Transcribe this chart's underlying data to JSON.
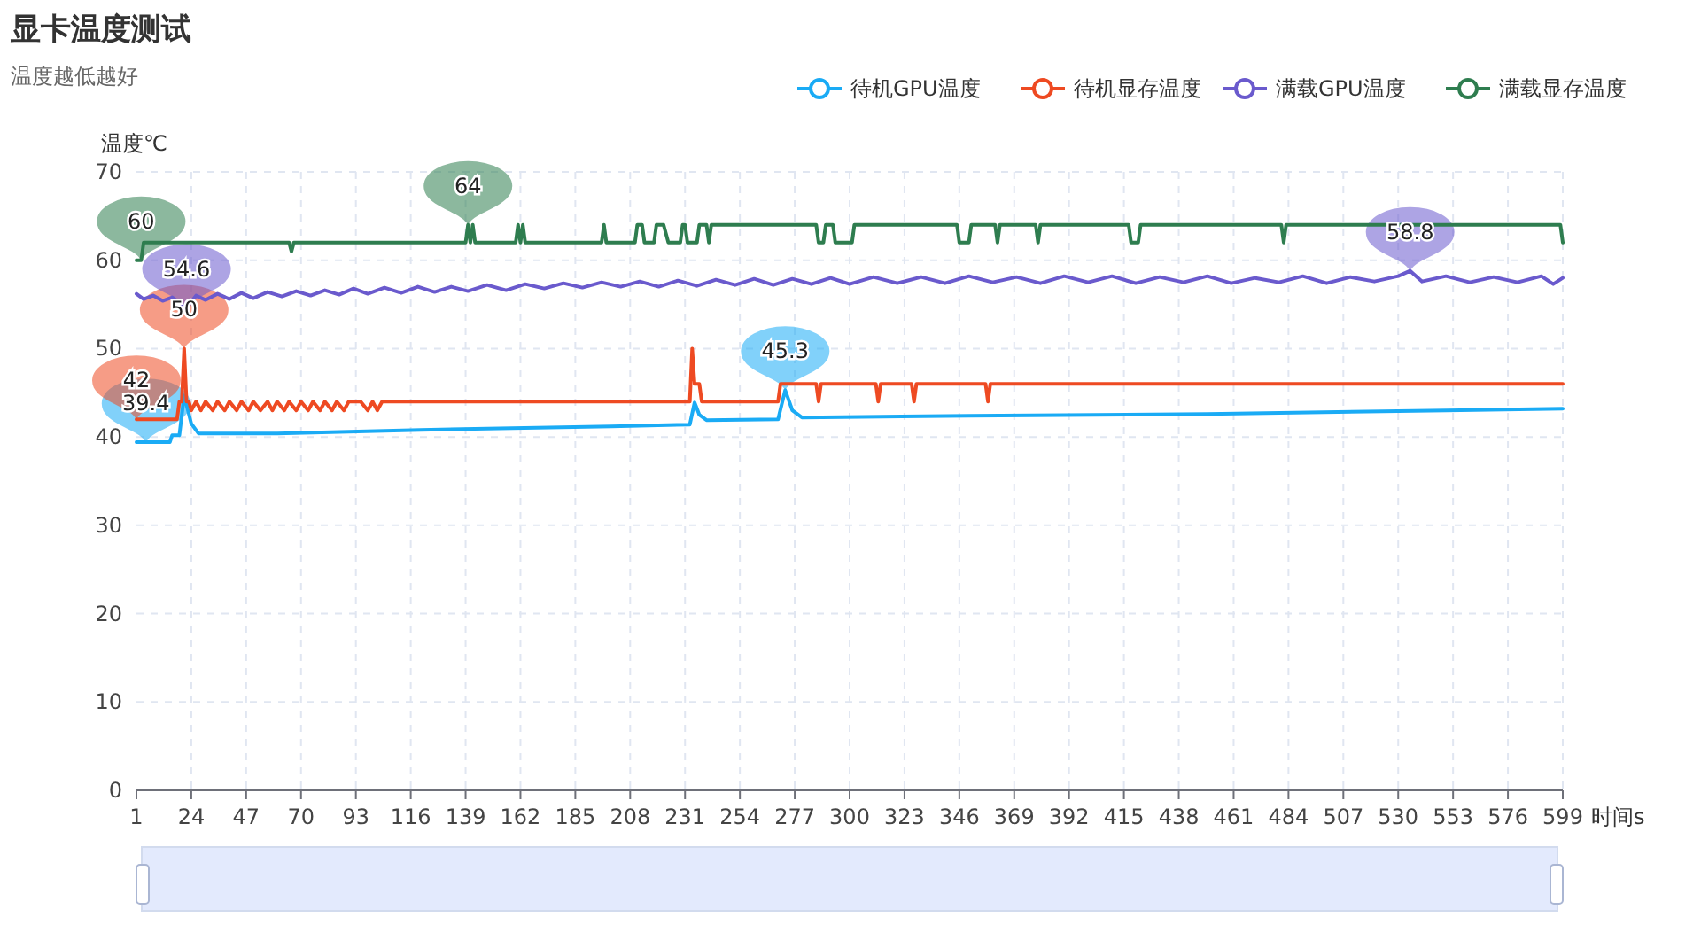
{
  "chart_data": {
    "type": "line",
    "title": "显卡温度测试",
    "subtitle": "温度越低越好",
    "xlabel": "时间s",
    "ylabel": "温度℃",
    "xlim": [
      1,
      599
    ],
    "xticks": [
      1,
      24,
      47,
      70,
      93,
      116,
      139,
      162,
      185,
      208,
      231,
      254,
      277,
      300,
      323,
      346,
      369,
      392,
      415,
      438,
      461,
      484,
      507,
      530,
      553,
      576,
      599
    ],
    "ylim": [
      0,
      70
    ],
    "yticks": [
      0,
      10,
      20,
      30,
      40,
      50,
      60,
      70
    ],
    "grid": true,
    "legend": "top right",
    "series": [
      {
        "name": "待机GPU温度",
        "color": "#1aabf5",
        "x": [
          1,
          15,
          16,
          19,
          21,
          24,
          27,
          60,
          120,
          200,
          233,
          235,
          237,
          240,
          270,
          273,
          276,
          280,
          350,
          450,
          550,
          599
        ],
        "values": [
          39.4,
          39.4,
          40.2,
          40.2,
          44.7,
          41.5,
          40.4,
          40.4,
          40.8,
          41.2,
          41.4,
          43.9,
          42.5,
          41.9,
          42.0,
          45.3,
          43.0,
          42.2,
          42.4,
          42.6,
          43.0,
          43.2
        ]
      },
      {
        "name": "待机显存温度",
        "color": "#ee4a22",
        "x": [
          1,
          18,
          19,
          20,
          21,
          22,
          23,
          24,
          26,
          28,
          30,
          33,
          35,
          38,
          40,
          43,
          45,
          48,
          50,
          53,
          56,
          58,
          60,
          63,
          65,
          68,
          70,
          73,
          75,
          78,
          80,
          83,
          85,
          88,
          90,
          93,
          95,
          98,
          100,
          102,
          104,
          233,
          234,
          235,
          237,
          238,
          270,
          271,
          286,
          287,
          288,
          311,
          312,
          313,
          326,
          327,
          328,
          357,
          358,
          359,
          599
        ],
        "values": [
          42,
          42,
          44,
          44,
          50,
          44,
          44,
          43,
          44,
          43,
          44,
          43,
          44,
          43,
          44,
          43,
          44,
          43,
          44,
          43,
          44,
          43,
          44,
          43,
          44,
          43,
          44,
          43,
          44,
          43,
          44,
          43,
          44,
          43,
          44,
          44,
          44,
          43,
          44,
          43,
          44,
          44,
          50,
          46,
          46,
          44,
          44,
          46,
          46,
          44,
          46,
          46,
          44,
          46,
          46,
          44,
          46,
          46,
          44,
          46,
          46
        ]
      },
      {
        "name": "满载GPU温度",
        "color": "#6a5acd",
        "x": [
          1,
          4,
          8,
          12,
          16,
          22,
          26,
          30,
          35,
          40,
          45,
          50,
          56,
          62,
          68,
          74,
          80,
          86,
          92,
          98,
          105,
          112,
          119,
          126,
          133,
          140,
          148,
          156,
          164,
          172,
          180,
          188,
          196,
          204,
          212,
          220,
          228,
          236,
          244,
          252,
          260,
          268,
          276,
          284,
          292,
          300,
          310,
          320,
          330,
          340,
          350,
          360,
          370,
          380,
          390,
          400,
          410,
          420,
          430,
          440,
          450,
          460,
          470,
          480,
          490,
          500,
          510,
          520,
          530,
          535,
          540,
          550,
          560,
          570,
          580,
          590,
          595,
          599
        ],
        "values": [
          56.2,
          55.6,
          56.0,
          55.4,
          55.8,
          54.6,
          56.0,
          55.5,
          56.2,
          55.6,
          56.3,
          55.7,
          56.4,
          55.9,
          56.5,
          56.0,
          56.6,
          56.1,
          56.8,
          56.2,
          56.9,
          56.3,
          57.0,
          56.4,
          57.0,
          56.5,
          57.2,
          56.6,
          57.3,
          56.8,
          57.4,
          56.9,
          57.5,
          57.0,
          57.6,
          57.0,
          57.7,
          57.1,
          57.8,
          57.2,
          57.9,
          57.2,
          57.9,
          57.3,
          58.0,
          57.3,
          58.1,
          57.4,
          58.1,
          57.4,
          58.2,
          57.5,
          58.1,
          57.4,
          58.2,
          57.5,
          58.2,
          57.4,
          58.1,
          57.5,
          58.2,
          57.4,
          58.0,
          57.5,
          58.2,
          57.4,
          58.1,
          57.6,
          58.2,
          58.8,
          57.6,
          58.2,
          57.5,
          58.1,
          57.5,
          58.2,
          57.3,
          58.0
        ]
      },
      {
        "name": "满载显存温度",
        "color": "#2e7d4f",
        "x": [
          1,
          3,
          4,
          65,
          66,
          67,
          139,
          140,
          141,
          142,
          143,
          160,
          161,
          162,
          163,
          164,
          196,
          197,
          198,
          210,
          211,
          213,
          214,
          218,
          219,
          222,
          224,
          225,
          229,
          230,
          231,
          232,
          236,
          237,
          240,
          241,
          242,
          286,
          287,
          289,
          290,
          293,
          294,
          301,
          302,
          345,
          346,
          350,
          351,
          361,
          362,
          363,
          378,
          379,
          380,
          417,
          418,
          421,
          422,
          481,
          482,
          483,
          598,
          599
        ],
        "values": [
          60,
          60,
          62,
          62,
          61,
          62,
          62,
          64,
          62,
          64,
          62,
          62,
          64,
          62,
          64,
          62,
          62,
          64,
          62,
          62,
          64,
          64,
          62,
          62,
          64,
          64,
          62,
          62,
          62,
          64,
          64,
          62,
          62,
          64,
          64,
          62,
          64,
          64,
          62,
          62,
          64,
          64,
          62,
          62,
          64,
          64,
          62,
          62,
          64,
          64,
          62,
          64,
          64,
          62,
          64,
          64,
          62,
          62,
          64,
          64,
          62,
          64,
          64,
          62
        ]
      }
    ],
    "annotations": [
      {
        "text": "39.4",
        "x": 5,
        "y": 39.4
      },
      {
        "text": "42",
        "x": 1,
        "y": 42
      },
      {
        "text": "50",
        "x": 21,
        "y": 50
      },
      {
        "text": "60",
        "x": 3,
        "y": 60
      },
      {
        "text": "64",
        "x": 140,
        "y": 64
      },
      {
        "text": "54.6",
        "x": 22,
        "y": 54.6
      },
      {
        "text": "58.8",
        "x": 535,
        "y": 58.8
      },
      {
        "text": "45.3",
        "x": 273,
        "y": 45.3
      }
    ]
  }
}
